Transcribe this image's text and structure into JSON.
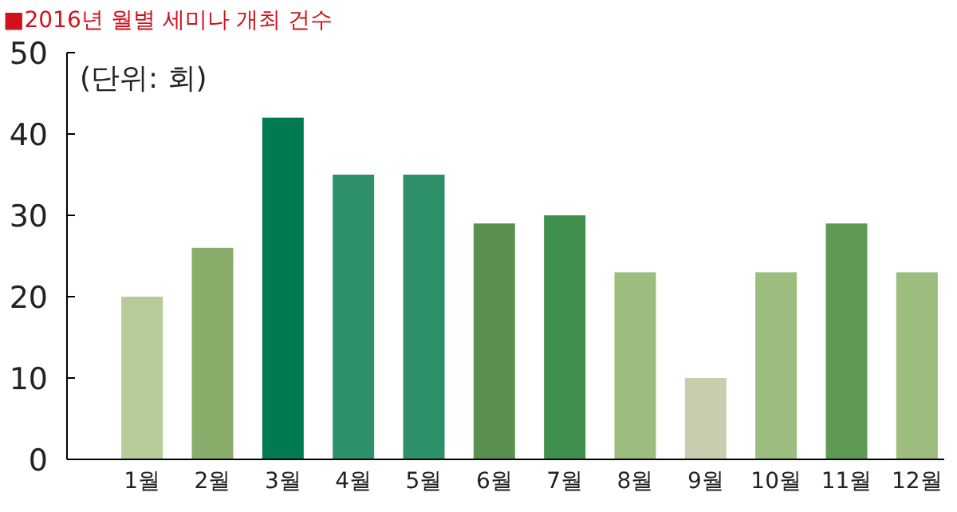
{
  "chart_data": {
    "type": "bar",
    "title": "■2016년 월별 세미나 개최 건수",
    "annotations": [
      "(단위: 회)"
    ],
    "categories": [
      "1월",
      "2월",
      "3월",
      "4월",
      "5월",
      "6월",
      "7월",
      "8월",
      "9월",
      "10월",
      "11월",
      "12월"
    ],
    "values": [
      20,
      26,
      42,
      35,
      35,
      29,
      30,
      23,
      10,
      23,
      29,
      23
    ],
    "colors": [
      "#b5cc98",
      "#8aac6a",
      "#007a50",
      "#2e9068",
      "#2e9068",
      "#5a9050",
      "#3f8f4f",
      "#9cbd7d",
      "#c8cdb0",
      "#9cbd7d",
      "#5f9a55",
      "#9cbd7d"
    ],
    "ylim": [
      0,
      50
    ],
    "yticks": [
      0,
      10,
      20,
      30,
      40,
      50
    ],
    "grid": false
  }
}
